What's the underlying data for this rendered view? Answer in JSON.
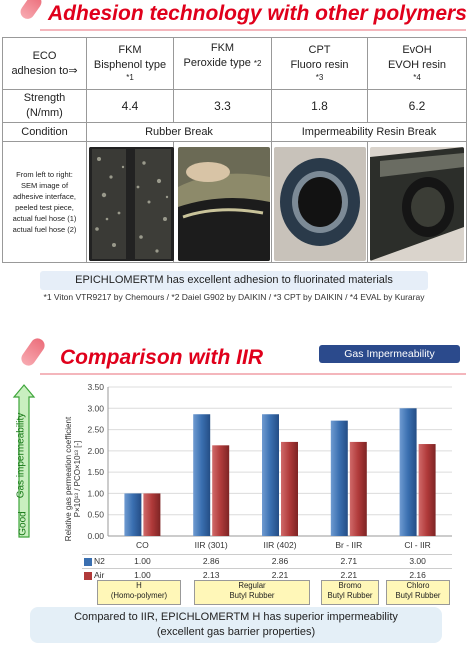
{
  "section1": {
    "title": "Adhesion technology with other polymers",
    "table": {
      "header": [
        [
          "ECO",
          "adhesion to⇒",
          ""
        ],
        [
          "FKM",
          "Bisphenol type",
          "*1"
        ],
        [
          "FKM",
          "Peroxide type",
          "*2"
        ],
        [
          "CPT",
          "Fluoro resin",
          "*3"
        ],
        [
          "EvOH",
          "EVOH resin",
          "*4"
        ]
      ],
      "strength_label": [
        "Strength",
        "(N/mm)"
      ],
      "strength_values": [
        "4.4",
        "3.3",
        "1.8",
        "6.2"
      ],
      "condition_label": "Condition",
      "condition_rubber": "Rubber Break",
      "condition_resin": "Impermeability Resin Break",
      "photo_caption": [
        "From left to right:",
        "SEM image of",
        "adhesive interface,",
        "peeled test piece,",
        "actual fuel hose (1)",
        "actual fuel hose (2)"
      ]
    },
    "banner": "EPICHLOMERTM has excellent adhesion to fluorinated materials",
    "footnote": "*1 Viton VTR9217 by Chemours / *2 Daiel  G902 by DAIKIN / *3 CPT by DAIKIN / *4 EVAL by Kuraray"
  },
  "section2": {
    "title": "Comparison with IIR",
    "badge": "Gas Impermeability",
    "arrow_label": "Gas impermeability",
    "arrow_good": "Good",
    "table_rows": [
      {
        "label": "N2",
        "values": [
          "1.00",
          "2.86",
          "2.86",
          "2.71",
          "3.00"
        ]
      },
      {
        "label": "Air",
        "values": [
          "1.00",
          "2.13",
          "2.21",
          "2.21",
          "2.16"
        ]
      }
    ],
    "polymer_boxes": [
      [
        "H",
        "(Homo-polymer)"
      ],
      [
        "Regular",
        "Butyl Rubber"
      ],
      [
        "Bromo",
        "Butyl Rubber"
      ],
      [
        "Chloro",
        "Butyl Rubber"
      ]
    ],
    "banner": [
      "Compared to IIR, EPICHLOMERTM H has superior impermeability",
      "(excellent gas barrier properties)"
    ]
  },
  "chart_data": {
    "type": "bar",
    "categories": [
      "CO",
      "IIR (301)",
      "IIR (402)",
      "Br - IIR",
      "Cl - IIR"
    ],
    "series": [
      {
        "name": "N2",
        "values": [
          1.0,
          2.86,
          2.86,
          2.71,
          3.0
        ],
        "color": "#3a6fb0"
      },
      {
        "name": "Air",
        "values": [
          1.0,
          2.13,
          2.21,
          2.21,
          2.16
        ],
        "color": "#b03a3a"
      }
    ],
    "ylim": [
      0,
      3.5
    ],
    "yticks": [
      "0.00",
      "0.50",
      "1.00",
      "1.50",
      "2.00",
      "2.50",
      "3.00",
      "3.50"
    ],
    "ylabel": [
      "Relative gas permeation coefficient",
      "P×10¹³ / PCO×10¹³ [-]"
    ],
    "grid": true
  }
}
